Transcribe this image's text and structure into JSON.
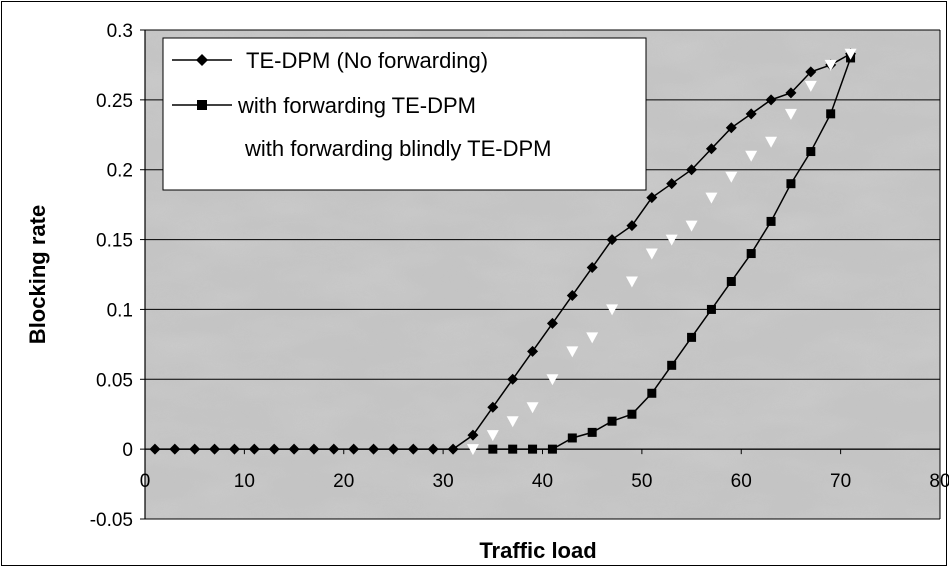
{
  "chart_data": {
    "type": "line",
    "xlabel": "Traffic load",
    "ylabel": "Blocking rate",
    "xlim": [
      0,
      80
    ],
    "ylim": [
      -0.05,
      0.3
    ],
    "x_ticks": [
      "0",
      "10",
      "20",
      "30",
      "40",
      "50",
      "60",
      "70",
      "80"
    ],
    "y_ticks": [
      "0.3",
      "0.25",
      "0.2",
      "0.15",
      "0.1",
      "0.05",
      "0",
      "-0.05"
    ],
    "grid": "horizontal",
    "legend_position": "top-left",
    "series": [
      {
        "name": "TE-DPM (No forwarding)",
        "marker": "diamond",
        "color": "#000000",
        "x": [
          1,
          3,
          5,
          7,
          9,
          11,
          13,
          15,
          17,
          19,
          21,
          23,
          25,
          27,
          29,
          31,
          33,
          35,
          37,
          39,
          41,
          43,
          45,
          47,
          49,
          51,
          53,
          55,
          57,
          59,
          61,
          63,
          65,
          67,
          69,
          71
        ],
        "y": [
          0,
          0,
          0,
          0,
          0,
          0,
          0,
          0,
          0,
          0,
          0,
          0,
          0,
          0,
          0,
          0,
          0.01,
          0.03,
          0.05,
          0.07,
          0.09,
          0.11,
          0.13,
          0.15,
          0.16,
          0.18,
          0.19,
          0.2,
          0.215,
          0.23,
          0.24,
          0.25,
          0.255,
          0.27,
          0.275,
          0.283
        ]
      },
      {
        "name": "with forwarding TE-DPM",
        "marker": "square",
        "color": "#000000",
        "x": [
          35,
          37,
          39,
          41,
          43,
          45,
          47,
          49,
          51,
          53,
          55,
          57,
          59,
          61,
          63,
          65,
          67,
          69,
          71
        ],
        "y": [
          0,
          0,
          0,
          0,
          0.008,
          0.012,
          0.02,
          0.025,
          0.04,
          0.06,
          0.08,
          0.1,
          0.12,
          0.14,
          0.163,
          0.19,
          0.213,
          0.24,
          0.28
        ]
      },
      {
        "name": "with forwarding blindly TE-DPM",
        "marker": "triangle",
        "color": "#ffffff",
        "x": [
          33,
          35,
          37,
          39,
          41,
          43,
          45,
          47,
          49,
          51,
          53,
          55,
          57,
          59,
          61,
          63,
          65,
          67,
          69,
          71
        ],
        "y": [
          0,
          0.01,
          0.02,
          0.03,
          0.05,
          0.07,
          0.08,
          0.1,
          0.12,
          0.14,
          0.15,
          0.16,
          0.18,
          0.195,
          0.21,
          0.22,
          0.24,
          0.26,
          0.275,
          0.283
        ]
      }
    ]
  }
}
